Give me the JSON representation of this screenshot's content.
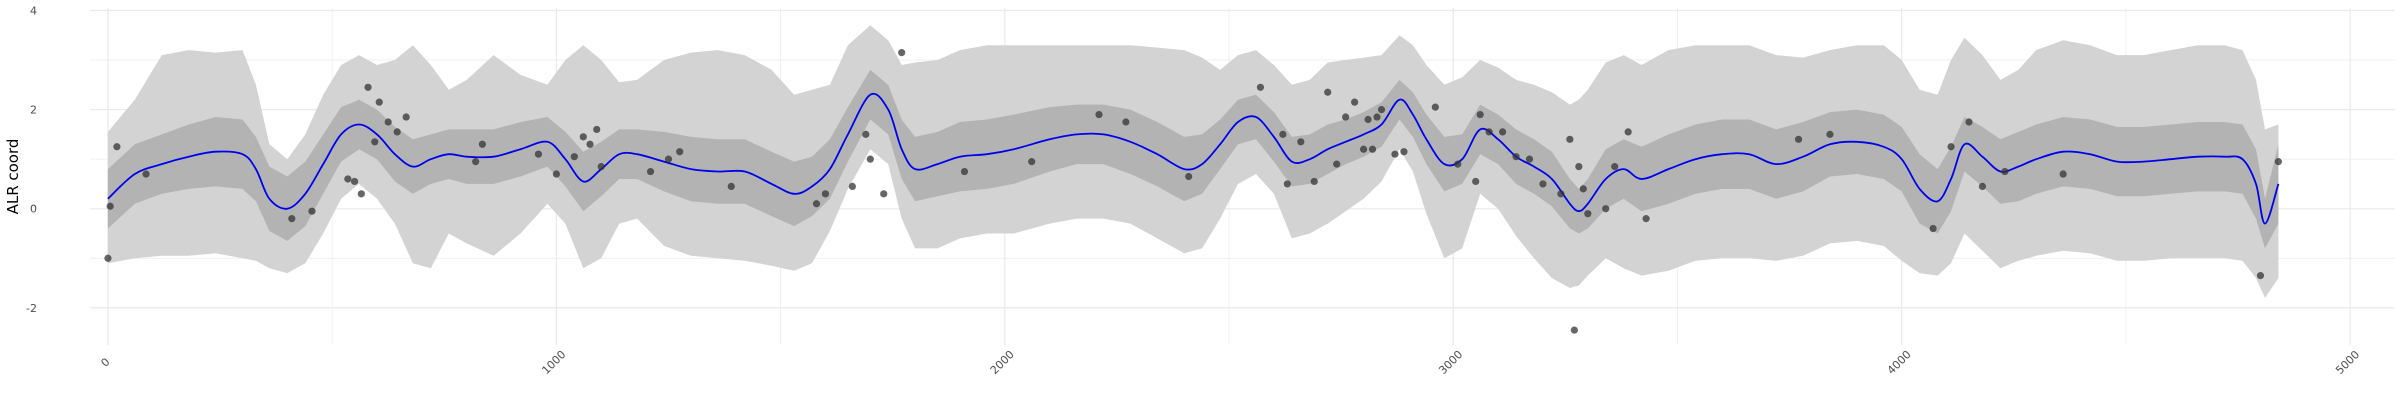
{
  "chart_data": {
    "type": "line",
    "title": "",
    "xlabel": "",
    "ylabel": "ALR coord",
    "xlim": [
      -40,
      5100
    ],
    "ylim": [
      -2.75,
      4.05
    ],
    "x_ticks": [
      0,
      1000,
      2000,
      3000,
      4000,
      5000
    ],
    "x_tick_labels": [
      "0",
      "1000",
      "2000",
      "3000",
      "4000",
      "5000"
    ],
    "y_ticks": [
      -2,
      0,
      2,
      4
    ],
    "y_tick_labels": [
      "-2",
      "0",
      "2",
      "4"
    ],
    "grid": true,
    "legend": "none",
    "colors": {
      "mean_line": "#0000ee",
      "inner_band": "#b3b3b3",
      "outer_band": "#d3d3d3",
      "points": "#333333",
      "grid": "#ebebeb"
    },
    "series": [
      {
        "kind": "line",
        "x": [
          0,
          60,
          120,
          180,
          240,
          300,
          330,
          360,
          400,
          440,
          480,
          520,
          560,
          600,
          640,
          680,
          720,
          760,
          800,
          860,
          920,
          980,
          1020,
          1060,
          1100,
          1140,
          1180,
          1240,
          1300,
          1360,
          1420,
          1480,
          1530,
          1570,
          1610,
          1650,
          1700,
          1740,
          1770,
          1800,
          1850,
          1900,
          1960,
          2020,
          2100,
          2160,
          2220,
          2280,
          2340,
          2400,
          2440,
          2480,
          2520,
          2560,
          2600,
          2640,
          2680,
          2720,
          2760,
          2800,
          2840,
          2880,
          2910,
          2940,
          2980,
          3020,
          3060,
          3100,
          3140,
          3180,
          3220,
          3260,
          3280,
          3300,
          3340,
          3380,
          3420,
          3480,
          3540,
          3600,
          3660,
          3720,
          3780,
          3840,
          3900,
          3960,
          4000,
          4040,
          4080,
          4110,
          4140,
          4180,
          4220,
          4260,
          4300,
          4360,
          4420,
          4480,
          4540,
          4600,
          4660,
          4720,
          4760,
          4790,
          4810,
          4840
        ],
        "y": [
          0.2,
          0.7,
          0.9,
          1.05,
          1.15,
          1.1,
          0.8,
          0.2,
          0.0,
          0.3,
          0.9,
          1.5,
          1.7,
          1.5,
          1.1,
          0.85,
          1.0,
          1.1,
          1.05,
          1.05,
          1.2,
          1.35,
          1.0,
          0.55,
          0.8,
          1.1,
          1.1,
          0.95,
          0.8,
          0.75,
          0.75,
          0.5,
          0.3,
          0.45,
          0.8,
          1.5,
          2.3,
          2.0,
          1.2,
          0.8,
          0.9,
          1.05,
          1.1,
          1.2,
          1.4,
          1.5,
          1.5,
          1.35,
          1.1,
          0.8,
          0.9,
          1.3,
          1.75,
          1.85,
          1.45,
          0.95,
          1.0,
          1.2,
          1.35,
          1.5,
          1.7,
          2.2,
          1.9,
          1.4,
          0.9,
          1.0,
          1.6,
          1.4,
          1.05,
          0.85,
          0.6,
          0.1,
          -0.05,
          0.1,
          0.6,
          0.8,
          0.6,
          0.8,
          1.0,
          1.1,
          1.1,
          0.9,
          1.05,
          1.3,
          1.35,
          1.25,
          1.0,
          0.4,
          0.15,
          0.6,
          1.3,
          1.05,
          0.75,
          0.85,
          1.0,
          1.15,
          1.1,
          0.95,
          0.95,
          1.0,
          1.05,
          1.05,
          1.0,
          0.5,
          -0.3,
          0.5
        ]
      },
      {
        "kind": "band",
        "name": "inner",
        "x": [
          0,
          60,
          120,
          180,
          240,
          300,
          330,
          360,
          400,
          440,
          480,
          520,
          560,
          600,
          640,
          680,
          720,
          760,
          800,
          860,
          920,
          980,
          1020,
          1060,
          1100,
          1140,
          1180,
          1240,
          1300,
          1360,
          1420,
          1480,
          1530,
          1570,
          1610,
          1650,
          1700,
          1740,
          1770,
          1800,
          1850,
          1900,
          1960,
          2020,
          2100,
          2160,
          2220,
          2280,
          2340,
          2400,
          2440,
          2480,
          2520,
          2560,
          2600,
          2640,
          2680,
          2720,
          2760,
          2800,
          2840,
          2880,
          2910,
          2940,
          2980,
          3020,
          3060,
          3100,
          3140,
          3180,
          3220,
          3260,
          3280,
          3300,
          3340,
          3380,
          3420,
          3480,
          3540,
          3600,
          3660,
          3720,
          3780,
          3840,
          3900,
          3960,
          4000,
          4040,
          4080,
          4110,
          4140,
          4180,
          4220,
          4260,
          4300,
          4360,
          4420,
          4480,
          4540,
          4600,
          4660,
          4720,
          4760,
          4790,
          4810,
          4840
        ],
        "lower": [
          -0.4,
          0.1,
          0.3,
          0.4,
          0.45,
          0.4,
          0.15,
          -0.45,
          -0.65,
          -0.35,
          0.3,
          0.95,
          1.2,
          1.0,
          0.55,
          0.3,
          0.5,
          0.6,
          0.5,
          0.5,
          0.65,
          0.85,
          0.45,
          -0.05,
          0.25,
          0.6,
          0.6,
          0.35,
          0.15,
          0.1,
          0.1,
          -0.15,
          -0.35,
          -0.15,
          0.2,
          0.95,
          1.8,
          1.5,
          0.6,
          0.15,
          0.25,
          0.35,
          0.4,
          0.5,
          0.75,
          0.9,
          0.9,
          0.7,
          0.45,
          0.15,
          0.3,
          0.8,
          1.3,
          1.4,
          0.95,
          0.45,
          0.5,
          0.7,
          0.9,
          1.05,
          1.25,
          1.8,
          1.45,
          0.9,
          0.35,
          0.5,
          1.1,
          0.9,
          0.5,
          0.3,
          0.05,
          -0.4,
          -0.5,
          -0.4,
          0.0,
          0.2,
          -0.05,
          0.1,
          0.3,
          0.4,
          0.4,
          0.2,
          0.35,
          0.65,
          0.7,
          0.6,
          0.35,
          -0.3,
          -0.5,
          -0.05,
          0.75,
          0.45,
          0.1,
          0.15,
          0.3,
          0.45,
          0.4,
          0.25,
          0.25,
          0.3,
          0.35,
          0.35,
          0.3,
          -0.2,
          -0.8,
          -0.3
        ],
        "upper": [
          0.8,
          1.3,
          1.5,
          1.7,
          1.85,
          1.8,
          1.45,
          0.85,
          0.65,
          0.95,
          1.5,
          2.05,
          2.2,
          2.0,
          1.65,
          1.4,
          1.5,
          1.6,
          1.6,
          1.6,
          1.75,
          1.85,
          1.55,
          1.15,
          1.35,
          1.6,
          1.6,
          1.55,
          1.45,
          1.4,
          1.4,
          1.15,
          0.95,
          1.05,
          1.4,
          2.05,
          2.8,
          2.5,
          1.8,
          1.45,
          1.55,
          1.75,
          1.8,
          1.9,
          2.05,
          2.1,
          2.1,
          2.0,
          1.75,
          1.45,
          1.5,
          1.8,
          2.2,
          2.3,
          1.95,
          1.45,
          1.5,
          1.7,
          1.8,
          1.95,
          2.15,
          2.6,
          2.35,
          1.9,
          1.45,
          1.5,
          2.1,
          1.9,
          1.6,
          1.4,
          1.15,
          0.6,
          0.4,
          0.6,
          1.2,
          1.4,
          1.25,
          1.5,
          1.7,
          1.8,
          1.8,
          1.6,
          1.75,
          1.95,
          2.0,
          1.9,
          1.65,
          1.1,
          0.8,
          1.25,
          1.85,
          1.65,
          1.4,
          1.55,
          1.7,
          1.85,
          1.8,
          1.65,
          1.65,
          1.7,
          1.75,
          1.75,
          1.7,
          1.2,
          0.2,
          1.3
        ]
      },
      {
        "kind": "band",
        "name": "outer",
        "x": [
          0,
          60,
          120,
          180,
          240,
          300,
          330,
          360,
          400,
          440,
          480,
          520,
          560,
          600,
          640,
          680,
          720,
          760,
          800,
          860,
          920,
          980,
          1020,
          1060,
          1100,
          1140,
          1180,
          1240,
          1300,
          1360,
          1420,
          1480,
          1530,
          1570,
          1610,
          1650,
          1700,
          1740,
          1770,
          1800,
          1850,
          1900,
          1960,
          2020,
          2100,
          2160,
          2220,
          2280,
          2340,
          2400,
          2440,
          2480,
          2520,
          2560,
          2600,
          2640,
          2680,
          2720,
          2760,
          2800,
          2840,
          2880,
          2910,
          2940,
          2980,
          3020,
          3060,
          3100,
          3140,
          3180,
          3220,
          3260,
          3280,
          3300,
          3340,
          3380,
          3420,
          3480,
          3540,
          3600,
          3660,
          3720,
          3780,
          3840,
          3900,
          3960,
          4000,
          4040,
          4080,
          4110,
          4140,
          4180,
          4220,
          4260,
          4300,
          4360,
          4420,
          4480,
          4540,
          4600,
          4660,
          4720,
          4760,
          4790,
          4810,
          4840
        ],
        "lower": [
          -1.1,
          -1.0,
          -0.95,
          -0.95,
          -0.9,
          -1.0,
          -1.05,
          -1.2,
          -1.3,
          -1.1,
          -0.5,
          0.2,
          0.5,
          0.2,
          -0.3,
          -1.1,
          -1.2,
          -0.5,
          -0.7,
          -0.95,
          -0.5,
          0.1,
          -0.3,
          -1.2,
          -1.0,
          -0.3,
          -0.2,
          -0.75,
          -0.95,
          -1.0,
          -1.05,
          -1.15,
          -1.25,
          -1.1,
          -0.45,
          0.4,
          1.2,
          0.9,
          -0.2,
          -0.8,
          -0.8,
          -0.6,
          -0.5,
          -0.5,
          -0.3,
          -0.2,
          -0.2,
          -0.3,
          -0.6,
          -0.9,
          -0.8,
          -0.2,
          0.5,
          0.7,
          0.3,
          -0.6,
          -0.5,
          -0.3,
          -0.05,
          0.2,
          0.55,
          1.2,
          0.75,
          -0.1,
          -1.0,
          -0.8,
          0.3,
          0.0,
          -0.55,
          -1.0,
          -1.4,
          -1.6,
          -1.55,
          -1.35,
          -1.0,
          -1.2,
          -1.35,
          -1.25,
          -1.05,
          -1.0,
          -1.0,
          -1.05,
          -0.95,
          -0.7,
          -0.65,
          -0.75,
          -1.05,
          -1.3,
          -1.35,
          -1.1,
          -0.5,
          -0.85,
          -1.2,
          -1.05,
          -0.95,
          -0.85,
          -0.9,
          -1.05,
          -1.05,
          -1.0,
          -1.0,
          -1.0,
          -1.05,
          -1.4,
          -1.8,
          -1.4
        ],
        "upper": [
          1.55,
          2.2,
          3.1,
          3.2,
          3.15,
          3.2,
          2.5,
          1.3,
          1.0,
          1.5,
          2.3,
          2.9,
          3.1,
          2.9,
          3.0,
          3.3,
          2.9,
          2.4,
          2.6,
          3.1,
          2.7,
          2.5,
          3.0,
          3.3,
          3.0,
          2.55,
          2.6,
          3.0,
          3.15,
          3.2,
          3.1,
          2.8,
          2.3,
          2.4,
          2.5,
          3.3,
          3.7,
          3.4,
          2.9,
          2.95,
          3.0,
          3.2,
          3.3,
          3.3,
          3.3,
          3.3,
          3.3,
          3.3,
          3.25,
          3.2,
          3.05,
          2.8,
          3.1,
          3.2,
          2.9,
          2.5,
          2.6,
          2.95,
          3.0,
          3.05,
          3.1,
          3.5,
          3.3,
          2.9,
          2.5,
          2.65,
          3.0,
          2.85,
          2.6,
          2.5,
          2.35,
          2.1,
          2.2,
          2.4,
          2.95,
          3.1,
          2.9,
          3.2,
          3.3,
          3.3,
          3.3,
          3.1,
          3.05,
          3.2,
          3.3,
          3.3,
          3.0,
          2.4,
          2.3,
          3.0,
          3.45,
          3.1,
          2.6,
          2.8,
          3.2,
          3.4,
          3.3,
          3.1,
          3.1,
          3.2,
          3.3,
          3.3,
          3.2,
          2.6,
          1.6,
          1.7
        ]
      },
      {
        "kind": "points",
        "x": [
          0,
          5,
          20,
          85,
          410,
          455,
          535,
          550,
          565,
          580,
          595,
          605,
          625,
          645,
          665,
          820,
          835,
          960,
          1000,
          1040,
          1060,
          1075,
          1090,
          1100,
          1210,
          1250,
          1275,
          1390,
          1580,
          1600,
          1660,
          1690,
          1700,
          1730,
          1770,
          1910,
          2060,
          2210,
          2270,
          2410,
          2570,
          2620,
          2630,
          2660,
          2690,
          2720,
          2740,
          2760,
          2780,
          2800,
          2810,
          2820,
          2830,
          2840,
          2870,
          2890,
          2960,
          3010,
          3050,
          3060,
          3080,
          3110,
          3140,
          3170,
          3200,
          3240,
          3260,
          3270,
          3280,
          3290,
          3300,
          3340,
          3360,
          3390,
          3430,
          3770,
          3840,
          4070,
          4110,
          4150,
          4180,
          4230,
          4360,
          4800,
          4840
        ],
        "y": [
          -1.0,
          0.05,
          1.25,
          0.7,
          -0.2,
          -0.05,
          0.6,
          0.55,
          0.3,
          2.45,
          1.35,
          2.15,
          1.75,
          1.55,
          1.85,
          0.95,
          1.3,
          1.1,
          0.7,
          1.05,
          1.45,
          1.3,
          1.6,
          0.85,
          0.75,
          1.0,
          1.15,
          0.45,
          0.1,
          0.3,
          0.45,
          1.5,
          1.0,
          0.3,
          3.15,
          0.75,
          0.95,
          1.9,
          1.75,
          0.65,
          2.45,
          1.5,
          0.5,
          1.35,
          0.55,
          2.35,
          0.9,
          1.85,
          2.15,
          1.2,
          1.8,
          1.2,
          1.85,
          2.0,
          1.1,
          1.15,
          2.05,
          0.9,
          0.55,
          1.9,
          1.55,
          1.55,
          1.05,
          1.0,
          0.5,
          0.3,
          1.4,
          -2.45,
          0.85,
          0.4,
          -0.1,
          0.0,
          0.85,
          1.55,
          -0.2,
          1.4,
          1.5,
          -0.4,
          1.25,
          1.75,
          0.45,
          0.75,
          0.7,
          -1.35,
          0.95
        ]
      }
    ]
  }
}
